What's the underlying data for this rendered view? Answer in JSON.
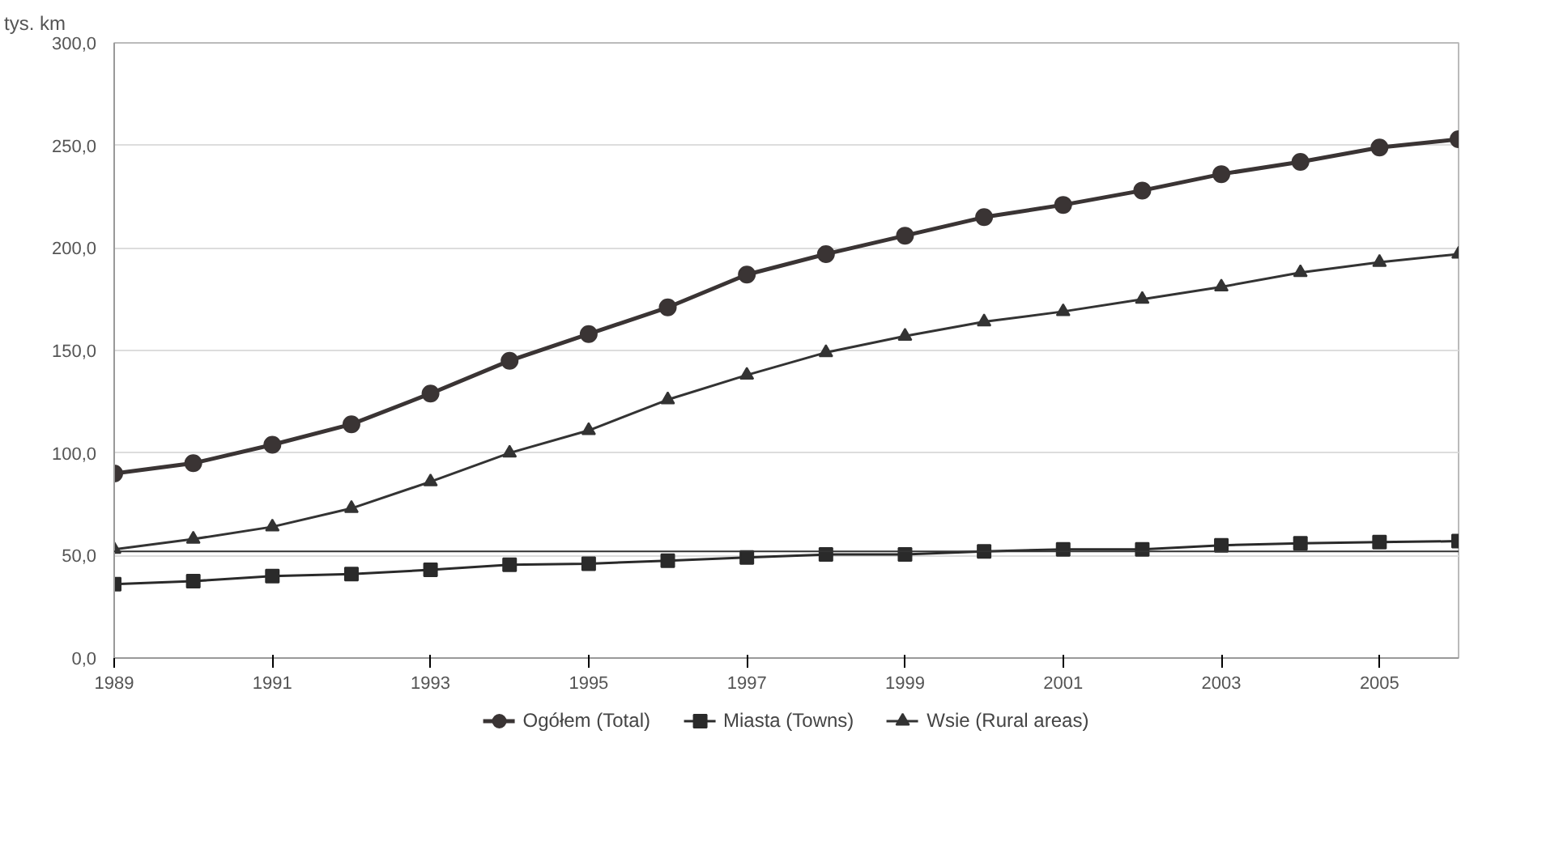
{
  "chart_data": {
    "type": "line",
    "ylabel": "tys. km",
    "x": [
      1989,
      1990,
      1991,
      1992,
      1993,
      1994,
      1995,
      1996,
      1997,
      1998,
      1999,
      2000,
      2001,
      2002,
      2003,
      2004,
      2005,
      2006
    ],
    "series": [
      {
        "name": "Ogółem (Total)",
        "color": "#3a3434",
        "marker": "circle",
        "values": [
          90,
          95,
          104,
          114,
          129,
          145,
          158,
          171,
          187,
          197,
          206,
          215,
          221,
          228,
          236,
          242,
          249,
          253
        ]
      },
      {
        "name": "Miasta (Towns)",
        "color": "#2a2a2a",
        "marker": "square",
        "values": [
          36,
          37.5,
          40,
          41,
          43,
          45.5,
          46,
          47.5,
          49,
          50.5,
          50.5,
          52,
          53,
          53,
          55,
          56,
          56.5,
          57
        ]
      },
      {
        "name": "Wsie (Rural areas)",
        "color": "#333333",
        "marker": "triangle",
        "values": [
          53,
          58,
          64,
          73,
          86,
          100,
          111,
          126,
          138,
          149,
          157,
          164,
          169,
          175,
          181,
          188,
          193,
          197
        ]
      }
    ],
    "ref_lines": [
      {
        "axis": "y",
        "value": 52,
        "color": "#333333"
      }
    ],
    "xlim": [
      1989,
      2006
    ],
    "xticks": [
      1989,
      1991,
      1993,
      1995,
      1997,
      1999,
      2001,
      2003,
      2005
    ],
    "ylim": [
      0,
      300
    ],
    "yticks": [
      {
        "value": 0,
        "label": "0,0"
      },
      {
        "value": 50,
        "label": "50,0"
      },
      {
        "value": 100,
        "label": "100,0"
      },
      {
        "value": 150,
        "label": "150,0"
      },
      {
        "value": 200,
        "label": "200,0"
      },
      {
        "value": 250,
        "label": "250,0"
      },
      {
        "value": 300,
        "label": "300,0"
      }
    ],
    "grid": "y",
    "legend": "bottom"
  }
}
